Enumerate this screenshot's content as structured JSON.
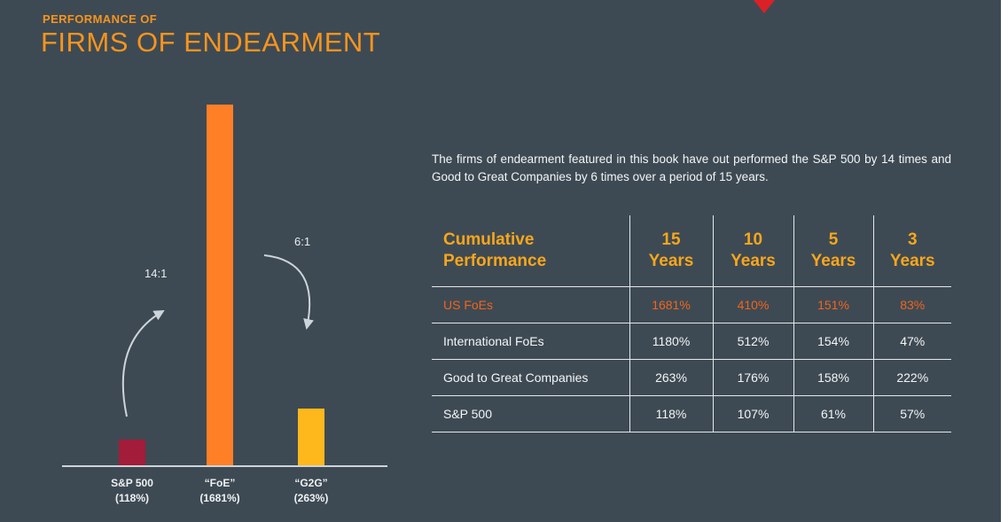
{
  "slide": {
    "eyebrow": "PERFORMANCE OF",
    "title": "FIRMS OF ENDEARMENT"
  },
  "chart_data": {
    "type": "bar",
    "categories": [
      "S&P 500",
      "“FoE”",
      "“G2G”"
    ],
    "values": [
      118,
      1681,
      263
    ],
    "value_labels": [
      "(118%)",
      "(1681%)",
      "(263%)"
    ],
    "bar_colors": [
      "#a31c3a",
      "#ff7f27",
      "#ffb81c"
    ],
    "annotations": [
      {
        "label": "14:1"
      },
      {
        "label": "6:1"
      }
    ],
    "title": "",
    "xlabel": "",
    "ylabel": "",
    "grid": false,
    "legend": "none"
  },
  "summary": "The firms of endearment featured in this book have out performed the S&P 500 by 14 times and Good to Great Companies by 6 times over a period of 15 years.",
  "table": {
    "header": [
      {
        "line1": "Cumulative",
        "line2": "Performance"
      },
      {
        "line1": "15",
        "line2": "Years"
      },
      {
        "line1": "10",
        "line2": "Years"
      },
      {
        "line1": "5",
        "line2": "Years"
      },
      {
        "line1": "3",
        "line2": "Years"
      }
    ],
    "rows": [
      {
        "label": "US FoEs",
        "values": [
          "1681%",
          "410%",
          "151%",
          "83%"
        ],
        "highlight": true
      },
      {
        "label": "International FoEs",
        "values": [
          "1180%",
          "512%",
          "154%",
          "47%"
        ],
        "highlight": false
      },
      {
        "label": "Good to Great Companies",
        "values": [
          "263%",
          "176%",
          "158%",
          "222%"
        ],
        "highlight": false
      },
      {
        "label": "S&P 500",
        "values": [
          "118%",
          "107%",
          "61%",
          "57%"
        ],
        "highlight": false
      }
    ]
  },
  "colors": {
    "background": "#3e4a53",
    "accent_orange": "#f7941e",
    "table_header_orange": "#f9a61c",
    "highlight_orange": "#f2641c",
    "bar_red": "#a31c3a",
    "bar_orange": "#ff7f27",
    "bar_yellow": "#ffb81c",
    "text": "#f3f5f6",
    "top_arrow_red": "#da2128"
  }
}
